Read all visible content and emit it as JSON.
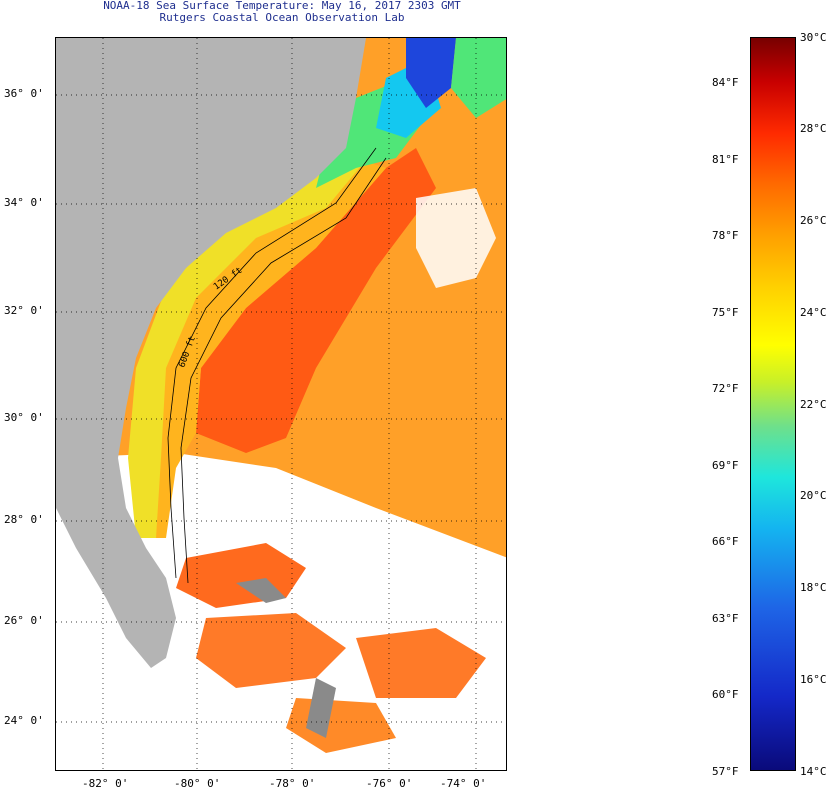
{
  "header": {
    "line1": "NOAA-18 Sea Surface Temperature:  May 16, 2017 2303 GMT",
    "line2": "Rutgers Coastal Ocean Observation Lab"
  },
  "map": {
    "lat_labels": [
      "36° 0'",
      "34° 0'",
      "32° 0'",
      "30° 0'",
      "28° 0'",
      "26° 0'",
      "24° 0'"
    ],
    "lon_labels": [
      "-82° 0'",
      "-80° 0'",
      "-78° 0'",
      "-76° 0'",
      "-74° 0'"
    ],
    "isobath_labels": [
      "120 ft",
      "600 ft"
    ],
    "colors": {
      "land": "#b4b4b4",
      "no_data": "#ffffff",
      "gulf_stream": "#ff5a14",
      "offshore": "#ffa028",
      "shelf_warm": "#ffb41e",
      "nearshore": "#ffd728",
      "coastal_yellow": "#f0f028",
      "cool_green": "#50e678",
      "cold_blue": "#1e46dc"
    }
  },
  "legend": {
    "fahrenheit": [
      "84°F",
      "81°F",
      "78°F",
      "75°F",
      "72°F",
      "69°F",
      "66°F",
      "63°F",
      "60°F",
      "57°F"
    ],
    "celsius": [
      "30°C",
      "28°C",
      "26°C",
      "24°C",
      "22°C",
      "20°C",
      "18°C",
      "16°C",
      "14°C"
    ],
    "range_c": [
      14,
      30
    ],
    "range_f": [
      57,
      86
    ]
  }
}
